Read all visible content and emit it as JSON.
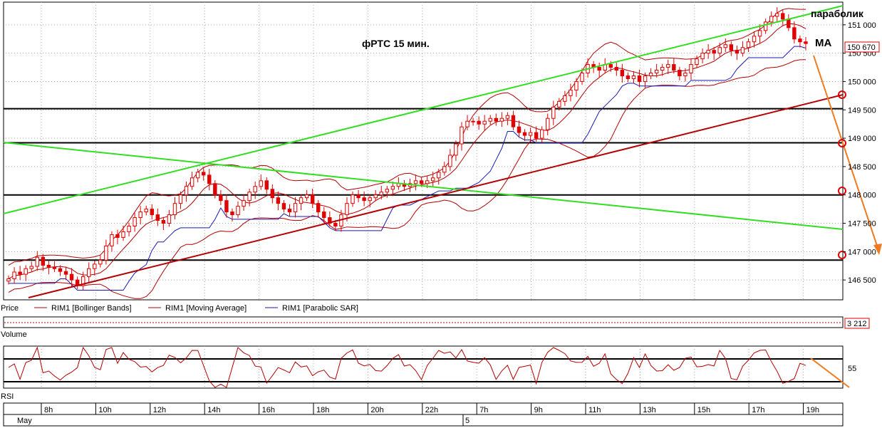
{
  "colors": {
    "background": "#ffffff",
    "grid": "#aaaaaa",
    "candle_up": "#ffffff",
    "candle_down": "#e00000",
    "candle_outline": "#e00000",
    "bollinger": "#b30000",
    "moving_average": "#b30000",
    "parabolic_sar": "#1a1ab0",
    "channel_green": "#33dd22",
    "trend_red": "#b30000",
    "orange": "#f07a20",
    "level": "#000000"
  },
  "annotations": {
    "title": "фРТС   15 мин.",
    "parabolic": "параболик",
    "ma": "МА",
    "last_price": "150 670",
    "last_volume": "3 212"
  },
  "legend": {
    "price": "Price",
    "items": [
      {
        "label": "RIM1 [Bollinger Bands]",
        "color": "#b30000"
      },
      {
        "label": "RIM1 [Moving Average]",
        "color": "#b30000"
      },
      {
        "label": "RIM1 [Parabolic SAR]",
        "color": "#1a1ab0"
      }
    ]
  },
  "panels": {
    "volume_label": "Volume",
    "rsi_label": "RSI",
    "rsi_tick": "55"
  },
  "chart_data": {
    "type": "candlestick",
    "y_ticks": [
      "146 500",
      "147 000",
      "147 500",
      "148 000",
      "148 500",
      "149 000",
      "149 500",
      "150 000",
      "150 500",
      "151 000"
    ],
    "y_tick_values": [
      146500,
      147000,
      147500,
      148000,
      148500,
      149000,
      149500,
      150000,
      150500,
      151000
    ],
    "ylim": [
      146150,
      151400
    ],
    "x_ticks": [
      "8h",
      "10h",
      "12h",
      "14h",
      "16h",
      "18h",
      "20h",
      "22h",
      "7h",
      "9h",
      "11h",
      "13h",
      "15h",
      "17h",
      "19h"
    ],
    "dates": [
      "May",
      "5"
    ],
    "levels": [
      149520,
      148920,
      148000,
      146850
    ],
    "closes": [
      146520,
      146640,
      146600,
      146700,
      146740,
      146900,
      146760,
      146720,
      146700,
      146650,
      146600,
      146500,
      146400,
      146560,
      146700,
      146780,
      146850,
      147100,
      147300,
      147250,
      147350,
      147450,
      147600,
      147700,
      147750,
      147650,
      147550,
      147500,
      147650,
      147850,
      148000,
      148150,
      148300,
      148400,
      148350,
      148200,
      148000,
      147900,
      147700,
      147650,
      147800,
      147900,
      148050,
      148150,
      148250,
      148100,
      147950,
      147850,
      147750,
      147700,
      147850,
      147950,
      148000,
      147850,
      147700,
      147600,
      147500,
      147450,
      147650,
      147850,
      148000,
      147950,
      147900,
      147950,
      148000,
      148050,
      148100,
      148150,
      148200,
      148150,
      148200,
      148250,
      148200,
      148250,
      148300,
      148400,
      148500,
      148700,
      148900,
      149200,
      149300,
      149300,
      149250,
      149300,
      149350,
      149300,
      149350,
      149400,
      149200,
      149100,
      149050,
      149100,
      149000,
      149150,
      149350,
      149550,
      149650,
      149750,
      149850,
      150000,
      150150,
      150300,
      150250,
      150200,
      150300,
      150250,
      150200,
      150100,
      150050,
      150100,
      150000,
      150100,
      150150,
      150200,
      150250,
      150300,
      150200,
      150100,
      150150,
      150300,
      150400,
      150500,
      150550,
      150500,
      150600,
      150650,
      150550,
      150500,
      150600,
      150700,
      150800,
      150900,
      151050,
      151150,
      151200,
      151100,
      150950,
      150750,
      150700,
      150670
    ]
  }
}
